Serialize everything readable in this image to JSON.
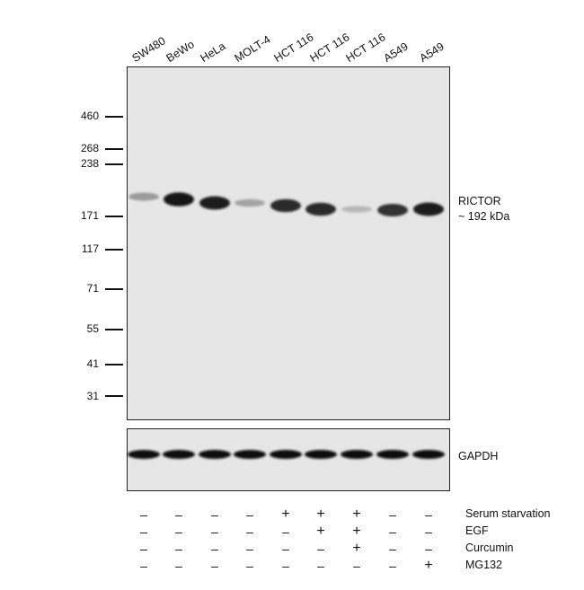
{
  "lanes": [
    "SW480",
    "BeWo",
    "HeLa",
    "MOLT-4",
    "HCT 116",
    "HCT 116",
    "HCT 116",
    "A549",
    "A549"
  ],
  "mw_markers": [
    "460",
    "268",
    "238",
    "171",
    "117",
    "71",
    "55",
    "41",
    "31"
  ],
  "target": {
    "name": "RICTOR",
    "size": "~ 192 kDa"
  },
  "loading_control": "GAPDH",
  "band_intensity": [
    0.3,
    0.95,
    0.9,
    0.25,
    0.85,
    0.85,
    0.15,
    0.8,
    0.9
  ],
  "conditions": [
    {
      "label": "Serum starvation",
      "signs": [
        "-",
        "-",
        "-",
        "-",
        "+",
        "+",
        "+",
        "-",
        "-"
      ]
    },
    {
      "label": "EGF",
      "signs": [
        "-",
        "-",
        "-",
        "-",
        "-",
        "+",
        "+",
        "-",
        "-"
      ]
    },
    {
      "label": "Curcumin",
      "signs": [
        "-",
        "-",
        "-",
        "-",
        "-",
        "-",
        "+",
        "-",
        "-"
      ]
    },
    {
      "label": "MG132",
      "signs": [
        "-",
        "-",
        "-",
        "-",
        "-",
        "-",
        "-",
        "-",
        "+"
      ]
    }
  ]
}
